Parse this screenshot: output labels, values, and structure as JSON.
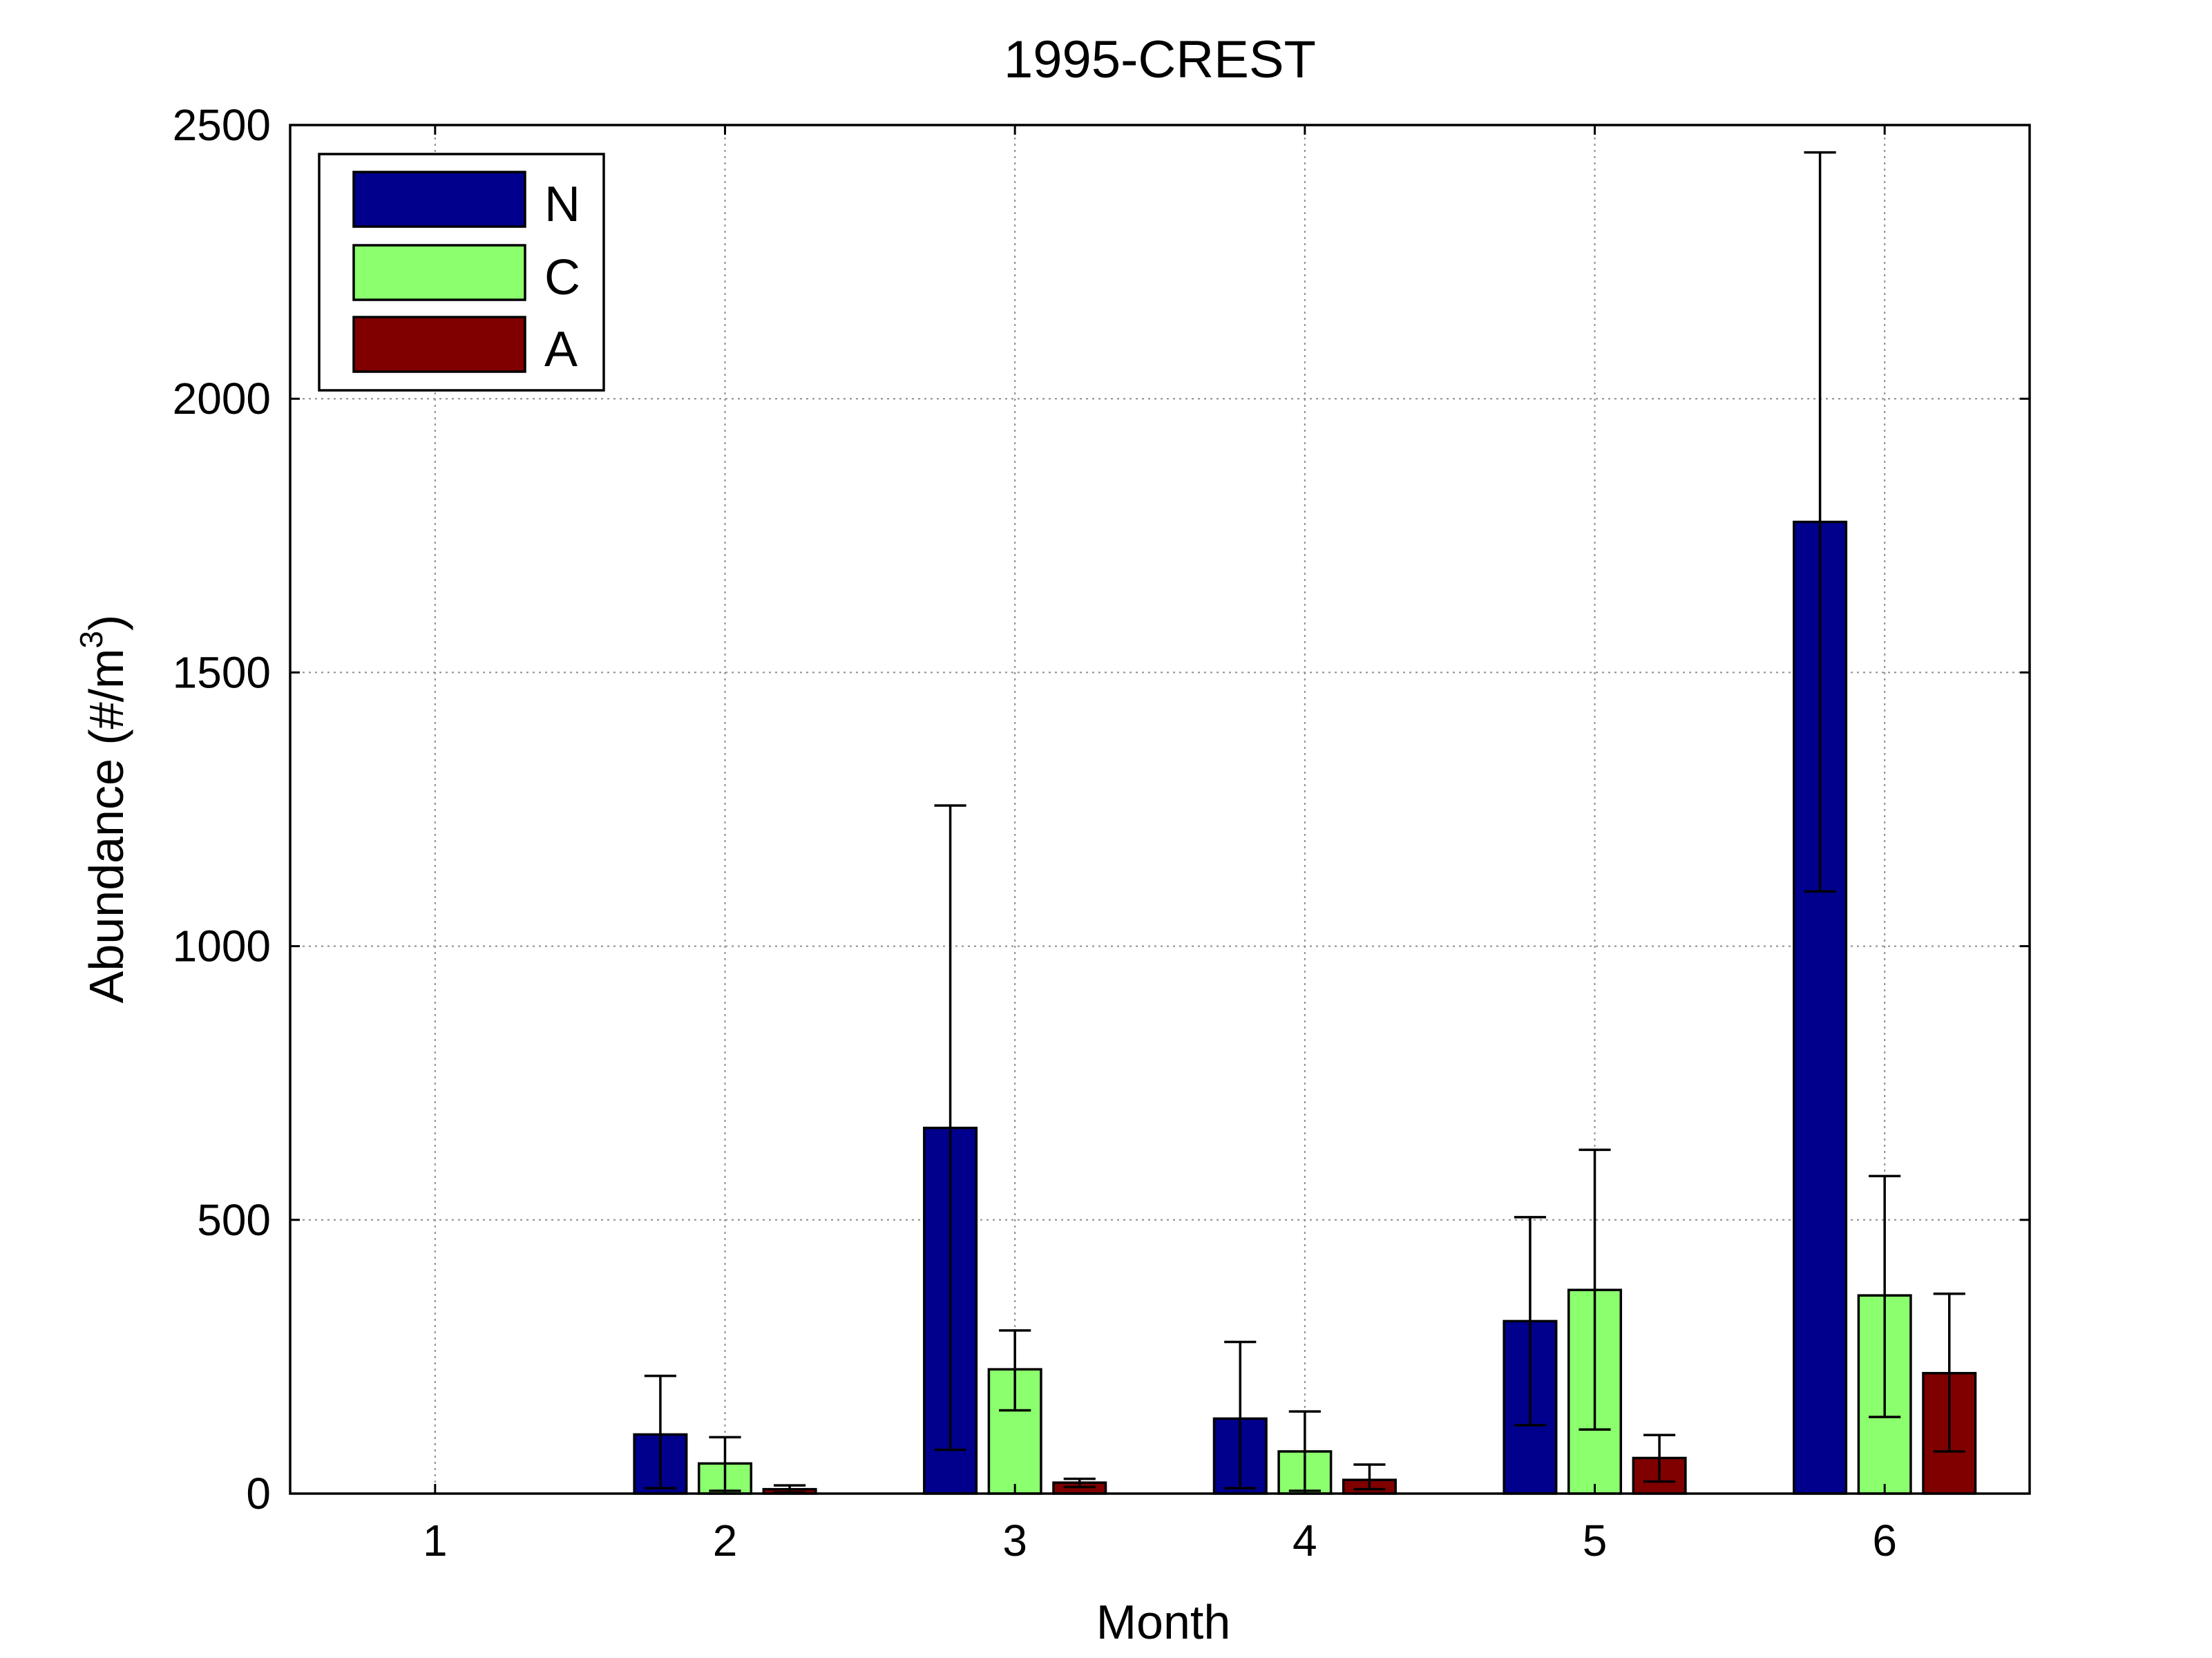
{
  "chart_data": {
    "type": "bar",
    "title": "1995-CREST",
    "xlabel": "Month",
    "ylabel": "Abundance (#/m",
    "ylabel_superscript": "3",
    "ylabel_suffix": ")",
    "categories": [
      "1",
      "2",
      "3",
      "4",
      "5",
      "6"
    ],
    "ylim": [
      0,
      2500
    ],
    "yticks": [
      0,
      500,
      1000,
      1500,
      2000,
      2500
    ],
    "ytick_labels": [
      "0",
      "500",
      "1000",
      "1500",
      "2000",
      "2500"
    ],
    "grid": true,
    "legend_position": "top-left",
    "series": [
      {
        "name": "N",
        "color": "#00008c",
        "values": [
          0,
          108,
          668,
          137,
          315,
          1775
        ],
        "error_low": [
          null,
          10,
          80,
          10,
          125,
          1100
        ],
        "error_high": [
          null,
          215,
          1257,
          277,
          505,
          2450
        ]
      },
      {
        "name": "C",
        "color": "#8cff6e",
        "values": [
          0,
          55,
          227,
          77,
          372,
          362
        ],
        "error_low": [
          null,
          5,
          152,
          5,
          117,
          140
        ],
        "error_high": [
          null,
          103,
          298,
          150,
          628,
          580
        ]
      },
      {
        "name": "A",
        "color": "#800000",
        "values": [
          0,
          8,
          20,
          25,
          65,
          220
        ],
        "error_low": [
          null,
          2,
          12,
          8,
          22,
          77
        ],
        "error_high": [
          null,
          15,
          27,
          53,
          107,
          365
        ]
      }
    ]
  }
}
